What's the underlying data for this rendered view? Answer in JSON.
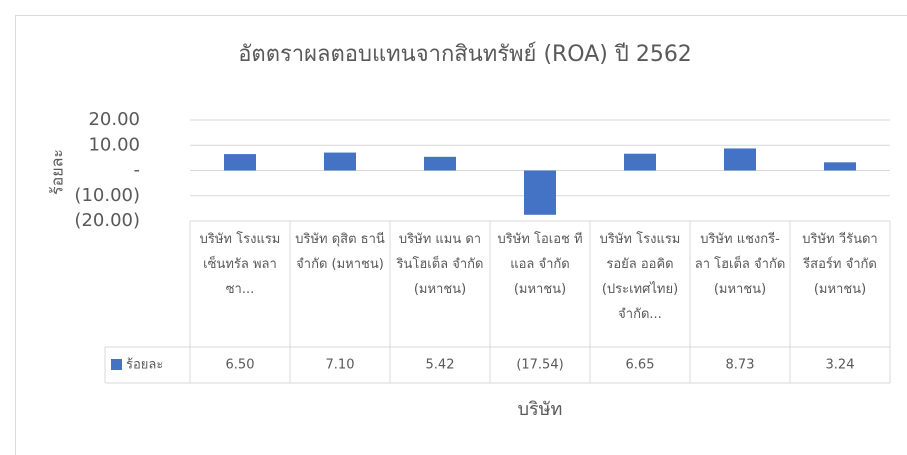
{
  "chart_data": {
    "type": "bar",
    "title": "อัตตราผลตอบแทนจากสินทรัพย์ (ROA) ปี 2562",
    "x_label": "บริษัท",
    "y_label": "ร้อยละ",
    "categories": [
      "บริษัท โรงแรม เซ็นทรัล พลาซา...",
      "บริษัท ดุสิต ธานี จำกัด (มหาชน)",
      "บริษัท แมน ดารินโฮเต็ล จำกัด (มหาชน)",
      "บริษัท โอเอช ทีแอล จำกัด (มหาชน)",
      "บริษัท โรงแรม รอยัล ออคิด (ประเทศไทย) จำกัด...",
      "บริษัท แชงกรี- ลา โฮเต็ล จำกัด (มหาชน)",
      "บริษัท วีรันดา รีสอร์ท จำกัด (มหาชน)"
    ],
    "series": [
      {
        "name": "ร้อยละ",
        "color": "#4472c4",
        "values": [
          6.5,
          7.1,
          5.42,
          -17.54,
          6.65,
          8.73,
          3.24
        ],
        "value_labels": [
          "6.50",
          "7.10",
          "5.42",
          "(17.54)",
          "6.65",
          "8.73",
          "3.24"
        ]
      }
    ],
    "ylim": [
      -20,
      20
    ],
    "yticks": [
      {
        "value": 20,
        "label": "20.00"
      },
      {
        "value": 10,
        "label": "10.00"
      },
      {
        "value": 0,
        "label": "-"
      },
      {
        "value": -10,
        "label": "(10.00)"
      },
      {
        "value": -20,
        "label": "(20.00)"
      }
    ],
    "grid": true
  }
}
